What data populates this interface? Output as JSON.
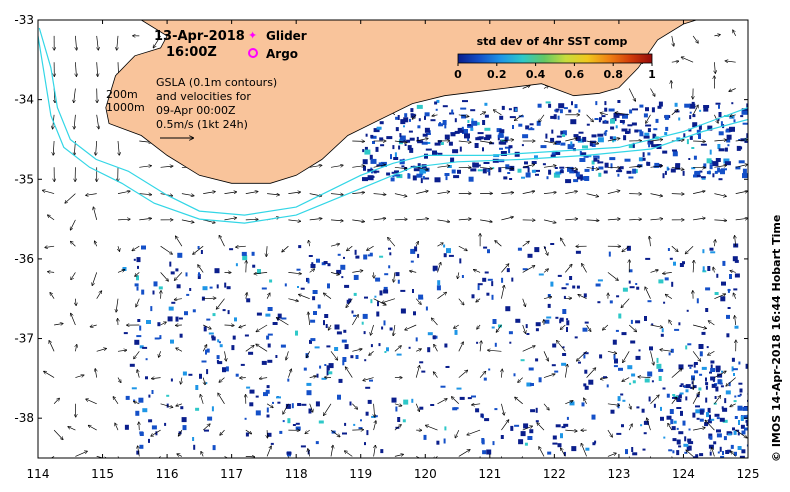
{
  "map": {
    "lon_range": [
      114,
      125
    ],
    "lat_range": [
      -38.5,
      -33
    ],
    "x_ticks": [
      "114",
      "115",
      "116",
      "117",
      "118",
      "119",
      "120",
      "121",
      "122",
      "123",
      "124",
      "125"
    ],
    "y_ticks": [
      "-33",
      "-34",
      "-35",
      "-36",
      "-37",
      "-38"
    ],
    "land_color": "#f9c49b",
    "shelf_contour_color": "#33d6e6",
    "coastline": [
      [
        114.0,
        -33.0
      ],
      [
        115.6,
        -33.0
      ],
      [
        116.0,
        -33.2
      ],
      [
        115.9,
        -33.35
      ],
      [
        115.5,
        -33.45
      ],
      [
        115.2,
        -33.7
      ],
      [
        115.05,
        -34.1
      ],
      [
        115.1,
        -34.3
      ],
      [
        115.6,
        -34.45
      ],
      [
        116.0,
        -34.7
      ],
      [
        116.5,
        -34.95
      ],
      [
        117.0,
        -35.05
      ],
      [
        117.6,
        -35.05
      ],
      [
        118.0,
        -34.95
      ],
      [
        118.4,
        -34.75
      ],
      [
        118.8,
        -34.45
      ],
      [
        119.3,
        -34.25
      ],
      [
        119.8,
        -34.05
      ],
      [
        120.3,
        -33.95
      ],
      [
        120.8,
        -33.9
      ],
      [
        121.3,
        -33.85
      ],
      [
        121.8,
        -33.8
      ],
      [
        122.3,
        -33.95
      ],
      [
        122.7,
        -33.92
      ],
      [
        123.0,
        -33.85
      ],
      [
        123.3,
        -33.6
      ],
      [
        123.6,
        -33.25
      ],
      [
        124.0,
        -33.05
      ],
      [
        124.2,
        -33.0
      ]
    ],
    "contour_200m": [
      [
        114.02,
        -33.1
      ],
      [
        114.2,
        -33.6
      ],
      [
        114.3,
        -34.1
      ],
      [
        114.5,
        -34.5
      ],
      [
        114.9,
        -34.75
      ],
      [
        115.4,
        -34.9
      ],
      [
        116.0,
        -35.2
      ],
      [
        116.5,
        -35.4
      ],
      [
        117.2,
        -35.45
      ],
      [
        118.0,
        -35.35
      ],
      [
        118.5,
        -35.15
      ],
      [
        119.0,
        -34.95
      ],
      [
        119.5,
        -34.8
      ],
      [
        120.0,
        -34.7
      ],
      [
        121.0,
        -34.7
      ],
      [
        122.0,
        -34.65
      ],
      [
        123.0,
        -34.6
      ],
      [
        124.0,
        -34.4
      ],
      [
        124.5,
        -34.25
      ],
      [
        125.0,
        -34.1
      ]
    ],
    "contour_1000m": [
      [
        114.0,
        -33.2
      ],
      [
        114.1,
        -33.7
      ],
      [
        114.2,
        -34.2
      ],
      [
        114.4,
        -34.6
      ],
      [
        114.8,
        -34.85
      ],
      [
        115.3,
        -35.05
      ],
      [
        115.8,
        -35.3
      ],
      [
        116.5,
        -35.5
      ],
      [
        117.2,
        -35.55
      ],
      [
        118.0,
        -35.45
      ],
      [
        118.6,
        -35.25
      ],
      [
        119.2,
        -35.05
      ],
      [
        119.8,
        -34.85
      ],
      [
        120.5,
        -34.78
      ],
      [
        121.5,
        -34.75
      ],
      [
        122.5,
        -34.7
      ],
      [
        123.5,
        -34.62
      ],
      [
        124.3,
        -34.4
      ],
      [
        125.0,
        -34.25
      ]
    ]
  },
  "title": {
    "date": "13-Apr-2018",
    "time": "16:00Z"
  },
  "legend": {
    "glider_label": "Glider",
    "argo_label": "Argo",
    "glider_color": "#ff00ff",
    "argo_color": "#ff00ff"
  },
  "notes": {
    "contour_200m": "200m",
    "contour_1000m": "1000m",
    "gsla_line1": "GSLA (0.1m contours)",
    "gsla_line2": "and velocities for",
    "gsla_line3": "09-Apr 00:00Z",
    "gsla_line4": "0.5m/s (1kt 24h)"
  },
  "colorbar": {
    "title": "std dev of 4hr SST comp",
    "tick_labels": [
      "0",
      "0.2",
      "0.4",
      "0.6",
      "0.8",
      "1"
    ],
    "range": [
      0,
      1
    ],
    "colors": [
      "#0a1e8c",
      "#1450c8",
      "#1e96e6",
      "#2ec8c8",
      "#64c864",
      "#c8dc3c",
      "#f0c81e",
      "#f08214",
      "#d23c0a",
      "#960a0a"
    ]
  },
  "credit": "© IMOS 14-Apr-2018 16:44 Hobart Time"
}
